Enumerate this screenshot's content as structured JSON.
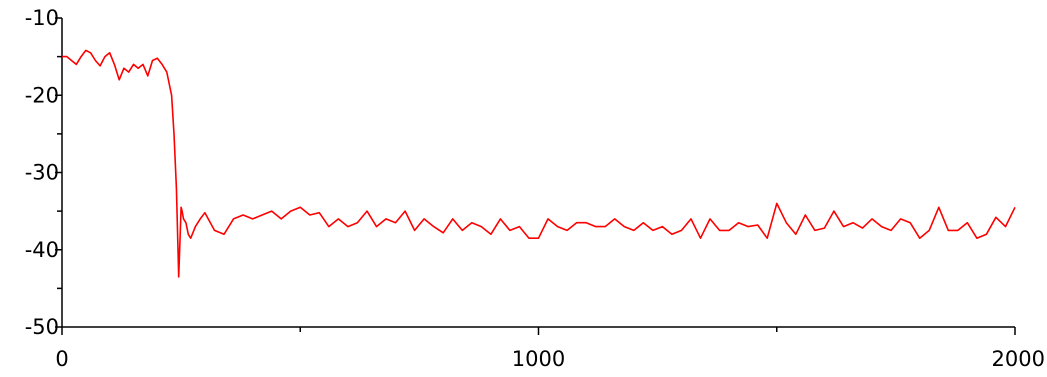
{
  "chart_data": {
    "type": "line",
    "title": "",
    "xlabel": "",
    "ylabel": "",
    "xlim": [
      0,
      2000
    ],
    "ylim": [
      -50,
      -10
    ],
    "x_ticks": [
      0,
      1000,
      2000
    ],
    "x_tick_labels": [
      "0",
      "1000",
      "2000"
    ],
    "x_minor_ticks": [
      500,
      1500
    ],
    "y_ticks": [
      -10,
      -20,
      -30,
      -40,
      -50
    ],
    "y_tick_labels": [
      "-10",
      "-20",
      "-30",
      "-40",
      "-50"
    ],
    "y_minor_ticks": [
      -15,
      -25,
      -35,
      -45
    ],
    "grid": false,
    "legend": "none",
    "series": [
      {
        "color": "#ff0000",
        "x": [
          0,
          10,
          20,
          30,
          40,
          50,
          60,
          70,
          80,
          90,
          100,
          110,
          120,
          130,
          140,
          150,
          160,
          170,
          180,
          190,
          200,
          210,
          220,
          230,
          235,
          240,
          245,
          248,
          250,
          252,
          255,
          260,
          265,
          270,
          280,
          290,
          300,
          320,
          340,
          360,
          380,
          400,
          420,
          440,
          460,
          480,
          500,
          520,
          540,
          560,
          580,
          600,
          620,
          640,
          660,
          680,
          700,
          720,
          740,
          760,
          780,
          800,
          820,
          840,
          860,
          880,
          900,
          920,
          940,
          960,
          980,
          1000,
          1020,
          1040,
          1060,
          1080,
          1100,
          1120,
          1140,
          1160,
          1180,
          1200,
          1220,
          1240,
          1260,
          1280,
          1300,
          1320,
          1340,
          1360,
          1380,
          1400,
          1420,
          1440,
          1460,
          1480,
          1500,
          1520,
          1540,
          1560,
          1580,
          1600,
          1620,
          1640,
          1660,
          1680,
          1700,
          1720,
          1740,
          1760,
          1780,
          1800,
          1820,
          1840,
          1860,
          1880,
          1900,
          1920,
          1940,
          1960,
          1980,
          2000
        ],
        "y": [
          -15,
          -15,
          -15.5,
          -16,
          -15,
          -14.2,
          -14.5,
          -15.5,
          -16.2,
          -15,
          -14.5,
          -16,
          -18,
          -16.5,
          -17,
          -16,
          -16.5,
          -16,
          -17.5,
          -15.5,
          -15.2,
          -16,
          -17,
          -20,
          -25,
          -32,
          -43.5,
          -38,
          -34.5,
          -35,
          -36,
          -36.5,
          -38,
          -38.5,
          -37,
          -36,
          -35.2,
          -37.5,
          -38,
          -36,
          -35.5,
          -36,
          -35.5,
          -35,
          -36,
          -35,
          -34.5,
          -35.5,
          -35.2,
          -37,
          -36,
          -37,
          -36.5,
          -35,
          -37,
          -36,
          -36.5,
          -35,
          -37.5,
          -36,
          -37,
          -37.8,
          -36,
          -37.5,
          -36.5,
          -37,
          -38,
          -36,
          -37.5,
          -37,
          -38.5,
          -38.5,
          -36,
          -37,
          -37.5,
          -36.5,
          -36.5,
          -37,
          -37,
          -36,
          -37,
          -37.5,
          -36.5,
          -37.5,
          -37,
          -38,
          -37.5,
          -36,
          -38.5,
          -36,
          -37.5,
          -37.5,
          -36.5,
          -37,
          -36.8,
          -38.5,
          -34,
          -36.5,
          -38,
          -35.5,
          -37.5,
          -37.2,
          -35,
          -37,
          -36.5,
          -37.2,
          -36,
          -37,
          -37.5,
          -36,
          -36.5,
          -38.5,
          -37.5,
          -34.5,
          -37.5,
          -37.5,
          -36.5,
          -38.5,
          -38,
          -35.8,
          -37,
          -34.5
        ]
      }
    ]
  }
}
